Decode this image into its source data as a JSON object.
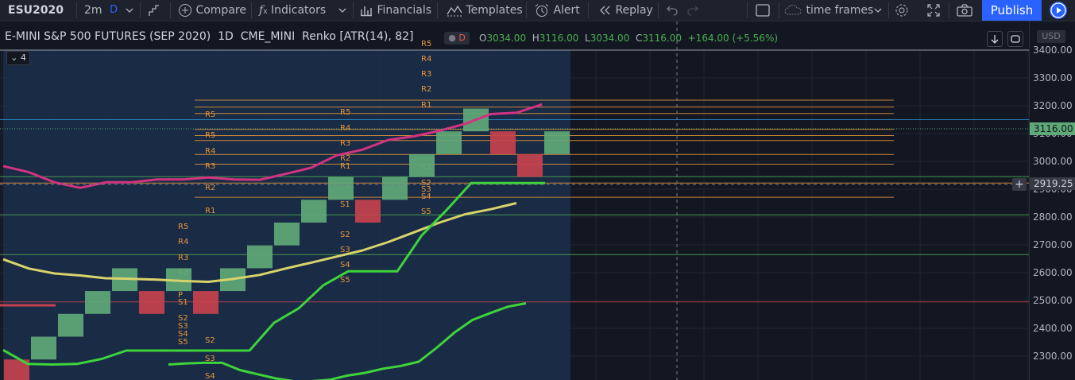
{
  "toolbar": {
    "symbol": "ESU2020",
    "interval": "2m",
    "interval_badge": "D",
    "compare": "Compare",
    "indicators": "Indicators",
    "financials": "Financials",
    "templates": "Templates",
    "alert": "Alert",
    "replay": "Replay",
    "timeframes": "time frames",
    "publish": "Publish"
  },
  "legend": {
    "title": "E-MINI S&P 500 FUTURES (SEP 2020)",
    "interval": "1D",
    "exchange": "CME_MINI",
    "chart_style": "Renko [ATR(14), 82]",
    "badge": "D",
    "collapse_count": "4"
  },
  "ohlc": {
    "o_key": "O",
    "o": "3034.00",
    "h_key": "H",
    "h": "3116.00",
    "l_key": "L",
    "l": "3034.00",
    "c_key": "C",
    "c": "3116.00",
    "change": "+164.00 (+5.56%)"
  },
  "price_axis": {
    "currency": "USD",
    "labels": [
      "3400.00",
      "3300.00",
      "3200.00",
      "3100.00",
      "3000.00",
      "2900.00",
      "2800.00",
      "2700.00",
      "2600.00",
      "2500.00",
      "2400.00",
      "2300.00"
    ],
    "last_price": "3116.00",
    "crosshair_price": "2919.25"
  },
  "colors": {
    "up": "#5fa878",
    "down": "#c5424d",
    "pivot": "#e8963a",
    "magenta": "#d13380",
    "yellow": "#d8d36a",
    "green": "#3ed43a"
  },
  "chart_data": {
    "type": "renko",
    "box_size": 82,
    "y_range": [
      2240,
      3420
    ],
    "bricks": [
      {
        "low": 2206,
        "high": 2288,
        "dir": "down"
      },
      {
        "low": 2288,
        "high": 2370,
        "dir": "up"
      },
      {
        "low": 2370,
        "high": 2452,
        "dir": "up"
      },
      {
        "low": 2452,
        "high": 2534,
        "dir": "up"
      },
      {
        "low": 2534,
        "high": 2616,
        "dir": "up"
      },
      {
        "low": 2452,
        "high": 2534,
        "dir": "down"
      },
      {
        "low": 2534,
        "high": 2616,
        "dir": "up"
      },
      {
        "low": 2452,
        "high": 2534,
        "dir": "down"
      },
      {
        "low": 2534,
        "high": 2616,
        "dir": "up"
      },
      {
        "low": 2616,
        "high": 2698,
        "dir": "up"
      },
      {
        "low": 2698,
        "high": 2780,
        "dir": "up"
      },
      {
        "low": 2780,
        "high": 2862,
        "dir": "up"
      },
      {
        "low": 2862,
        "high": 2944,
        "dir": "up"
      },
      {
        "low": 2780,
        "high": 2862,
        "dir": "down"
      },
      {
        "low": 2862,
        "high": 2944,
        "dir": "up"
      },
      {
        "low": 2944,
        "high": 3026,
        "dir": "up"
      },
      {
        "low": 3026,
        "high": 3108,
        "dir": "up"
      },
      {
        "low": 3108,
        "high": 3190,
        "dir": "up"
      },
      {
        "low": 3026,
        "high": 3108,
        "dir": "down"
      },
      {
        "low": 2944,
        "high": 3026,
        "dir": "down"
      },
      {
        "low": 3026,
        "high": 3108,
        "dir": "up"
      }
    ],
    "series": [
      {
        "name": "",
        "color": "magenta",
        "values": [
          2983,
          2961,
          2925,
          2905,
          2925,
          2925,
          2935,
          2935,
          2942,
          2935,
          2934,
          2955,
          2977,
          3022,
          3042,
          3077,
          3090,
          3110,
          3135,
          3170,
          3175,
          3205
        ]
      },
      {
        "name": "",
        "color": "yellow",
        "values": [
          2648,
          2615,
          2597,
          2590,
          2580,
          2578,
          2575,
          2570,
          2567,
          2578,
          2592,
          2615,
          2636,
          2658,
          2680,
          2710,
          2745,
          2780,
          2810,
          2828,
          2850
        ]
      },
      {
        "name": "",
        "color": "green",
        "values": [
          2322,
          2272,
          2270,
          2272,
          2290,
          2320,
          2320,
          2320,
          2320,
          2320,
          2320,
          2420,
          2472,
          2555,
          2605,
          2605,
          2605,
          2735,
          2825,
          2922,
          2922,
          2922,
          2922
        ]
      },
      {
        "name": "",
        "color": "green",
        "values": [
          2270,
          2274,
          2276,
          2276,
          2250,
          2235,
          2220,
          2210,
          2210,
          2215,
          2230,
          2240,
          2255,
          2265,
          2280,
          2330,
          2385,
          2430,
          2455,
          2478,
          2490
        ]
      }
    ],
    "horizontal_lines": [
      3220,
      3195,
      3172,
      3150,
      3115,
      3093,
      3075,
      3025,
      2990,
      2945,
      2922,
      2871,
      2808,
      2665,
      2495
    ]
  }
}
